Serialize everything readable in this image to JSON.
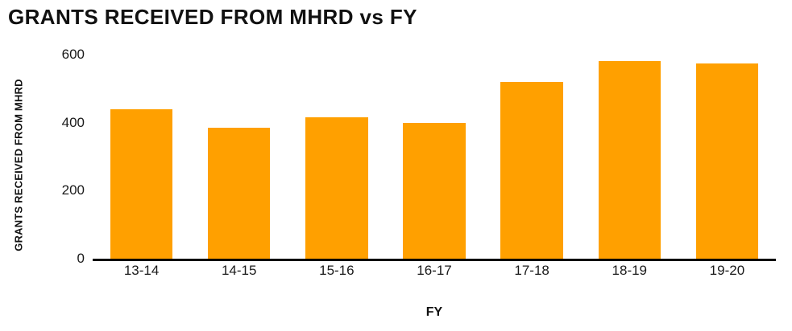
{
  "colors": {
    "bar": "#FFA000",
    "axis": "#000000",
    "text": "#1a1a1a",
    "background": "#ffffff"
  },
  "chart_data": {
    "type": "bar",
    "title": "GRANTS RECEIVED FROM MHRD vs FY",
    "xlabel": "FY",
    "ylabel": "GRANTS RECEIVED FROM MHRD",
    "categories": [
      "13-14",
      "14-15",
      "15-16",
      "16-17",
      "17-18",
      "18-19",
      "19-20"
    ],
    "values": [
      440,
      385,
      415,
      400,
      520,
      580,
      575
    ],
    "ylim": [
      0,
      600
    ],
    "yticks": [
      0,
      200,
      400,
      600
    ],
    "grid": false,
    "legend": false,
    "bar_color": "#FFA000"
  }
}
